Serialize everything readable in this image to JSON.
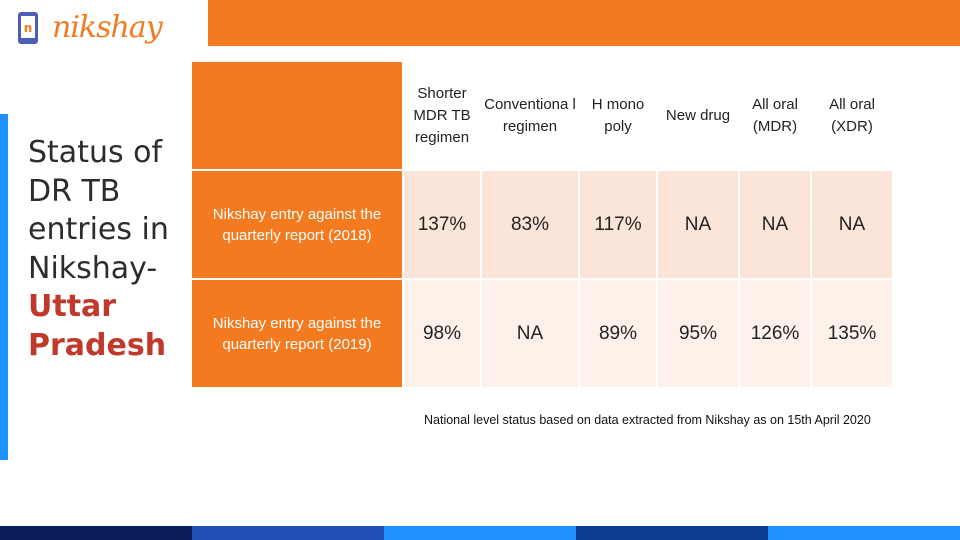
{
  "logo": {
    "text": "nikshay"
  },
  "title": {
    "line1": "Status of",
    "line2": "DR TB",
    "line3": "entries in",
    "line4": "Nikshay-",
    "highlight1": "Uttar",
    "highlight2": "Pradesh"
  },
  "table": {
    "headers": [
      "Shorter MDR TB regimen",
      "Conventiona l regimen",
      "H mono poly",
      "New drug",
      "All oral (MDR)",
      "All oral (XDR)"
    ],
    "rows": [
      {
        "label": "Nikshay entry against the quarterly report (2018)",
        "values": [
          "137%",
          "83%",
          "117%",
          "NA",
          "NA",
          "NA"
        ]
      },
      {
        "label": "Nikshay entry against the quarterly report (2019)",
        "values": [
          "98%",
          "NA",
          "89%",
          "95%",
          "126%",
          "135%"
        ]
      }
    ]
  },
  "note": "National level status based on data extracted from Nikshay  as on 15th April 2020",
  "colors": {
    "accent": "#f47a20",
    "row1": "#fbe4d8",
    "row2": "#fdf1ea",
    "highlight": "#c0392b",
    "blue": "#1e90ff"
  },
  "bottom_strip_colors": [
    "#0b1e5b",
    "#1f4fb4",
    "#1e90ff",
    "#0b3d91",
    "#1e90ff"
  ]
}
